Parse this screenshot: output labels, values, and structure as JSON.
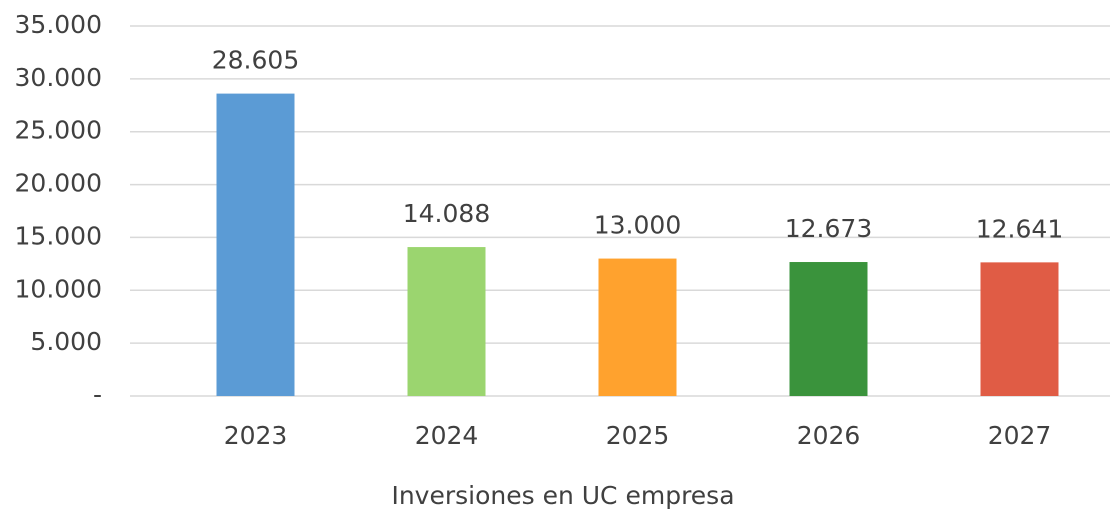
{
  "chart_data": {
    "type": "bar",
    "title": "Inversiones en UC empresa",
    "categories": [
      "2023",
      "2024",
      "2025",
      "2026",
      "2027"
    ],
    "values": [
      28605,
      14088,
      13000,
      12673,
      12641
    ],
    "value_labels": [
      "28.605",
      "14.088",
      "13.000",
      "12.673",
      "12.641"
    ],
    "colors": [
      "#5b9bd5",
      "#9bd56f",
      "#ffa22e",
      "#3a933c",
      "#e05c45"
    ],
    "ylim": [
      0,
      35000
    ],
    "yticks": [
      {
        "value": 0,
        "label": "-"
      },
      {
        "value": 5000,
        "label": "5.000"
      },
      {
        "value": 10000,
        "label": "10.000"
      },
      {
        "value": 15000,
        "label": "15.000"
      },
      {
        "value": 20000,
        "label": "20.000"
      },
      {
        "value": 25000,
        "label": "25.000"
      },
      {
        "value": 30000,
        "label": "30.000"
      },
      {
        "value": 35000,
        "label": "35.000"
      }
    ],
    "grid": true
  }
}
